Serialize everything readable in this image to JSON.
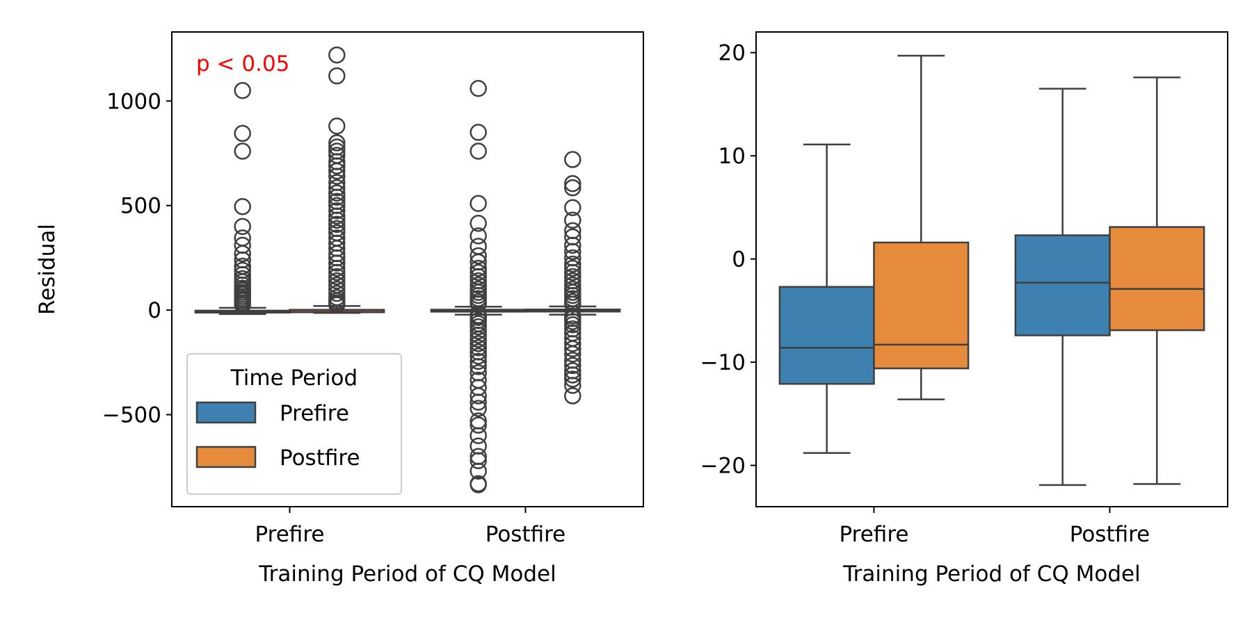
{
  "colors": {
    "prefire": "#3e80b0",
    "postfire": "#e68b3b",
    "line": "#3f3f3f",
    "annotation": "#ff0000"
  },
  "chart_data": [
    {
      "type": "box",
      "xlabel": "Training Period of CQ Model",
      "ylabel": "Residual",
      "ylim": [
        -940,
        1330
      ],
      "yticks": [
        -500,
        0,
        500,
        1000
      ],
      "ytick_labels": [
        "−500",
        "0",
        "500",
        "1000"
      ],
      "categories": [
        "Prefire",
        "Postfire"
      ],
      "annotation": {
        "text": "p < 0.05"
      },
      "legend": {
        "title": "Time Period",
        "position": "lower-left",
        "entries": [
          "Prefire",
          "Postfire"
        ]
      },
      "series": [
        {
          "name": "Prefire",
          "boxes": [
            {
              "category": "Prefire",
              "q1": -12,
              "median": -8.5,
              "q3": -2.5,
              "whislo": -19,
              "whishi": 11,
              "fliers": [
                1050,
                845,
                760,
                495,
                400,
                345,
                310,
                270,
                240,
                210,
                190,
                170,
                150,
                135,
                120,
                105,
                95,
                85,
                75,
                65,
                55,
                45,
                35,
                25
              ]
            },
            {
              "category": "Postfire",
              "q1": -7.5,
              "median": -2.5,
              "q3": 2,
              "whislo": -22,
              "whishi": 16.5,
              "fliers": [
                1060,
                850,
                760,
                510,
                415,
                355,
                305,
                260,
                230,
                200,
                180,
                160,
                140,
                120,
                100,
                85,
                70,
                55,
                40,
                30,
                -25,
                -35,
                -50,
                -65,
                -80,
                -100,
                -120,
                -140,
                -160,
                -180,
                -200,
                -220,
                -245,
                -270,
                -300,
                -335,
                -370,
                -410,
                -440,
                -470,
                -530,
                -550,
                -600,
                -650,
                -700,
                -720,
                -770,
                -830,
                -835
              ]
            }
          ]
        },
        {
          "name": "Postfire",
          "boxes": [
            {
              "category": "Prefire",
              "q1": -10.5,
              "median": -8.2,
              "q3": 1.5,
              "whislo": -13.5,
              "whishi": 19.5,
              "fliers": [
                1220,
                1120,
                880,
                800,
                780,
                760,
                740,
                710,
                690,
                665,
                640,
                610,
                585,
                560,
                540,
                520,
                500,
                475,
                450,
                430,
                410,
                390,
                370,
                345,
                320,
                295,
                270,
                250,
                225,
                200,
                180,
                160,
                140,
                120,
                100,
                80,
                60,
                45,
                35,
                25
              ]
            },
            {
              "category": "Postfire",
              "q1": -7,
              "median": -3,
              "q3": 3,
              "whislo": -22,
              "whishi": 17.5,
              "fliers": [
                720,
                605,
                585,
                490,
                430,
                380,
                350,
                310,
                280,
                250,
                220,
                200,
                180,
                160,
                140,
                120,
                100,
                85,
                70,
                55,
                40,
                28,
                -28,
                -40,
                -55,
                -70,
                -90,
                -110,
                -135,
                -160,
                -185,
                -210,
                -240,
                -265,
                -290,
                -310,
                -330,
                -360,
                -410
              ]
            }
          ]
        }
      ]
    },
    {
      "type": "box",
      "xlabel": "Training Period of CQ Model",
      "ylabel": "",
      "ylim": [
        -24,
        22
      ],
      "yticks": [
        -20,
        -10,
        0,
        10,
        20
      ],
      "ytick_labels": [
        "−20",
        "−10",
        "0",
        "10",
        "20"
      ],
      "categories": [
        "Prefire",
        "Postfire"
      ],
      "series": [
        {
          "name": "Prefire",
          "boxes": [
            {
              "category": "Prefire",
              "q1": -12.1,
              "median": -8.6,
              "q3": -2.7,
              "whislo": -18.8,
              "whishi": 11.1,
              "fliers": []
            },
            {
              "category": "Postfire",
              "q1": -7.4,
              "median": -2.3,
              "q3": 2.3,
              "whislo": -21.9,
              "whishi": 16.5,
              "fliers": []
            }
          ]
        },
        {
          "name": "Postfire",
          "boxes": [
            {
              "category": "Prefire",
              "q1": -10.6,
              "median": -8.3,
              "q3": 1.6,
              "whislo": -13.6,
              "whishi": 19.7,
              "fliers": []
            },
            {
              "category": "Postfire",
              "q1": -6.9,
              "median": -2.9,
              "q3": 3.1,
              "whislo": -21.8,
              "whishi": 17.6,
              "fliers": []
            }
          ]
        }
      ]
    }
  ]
}
